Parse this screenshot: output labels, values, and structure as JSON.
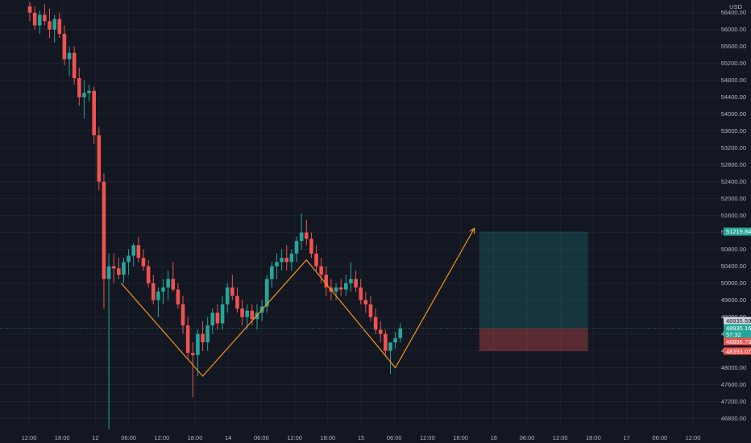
{
  "chart_data": {
    "type": "candlestick",
    "currency": "USD",
    "ylim": [
      46600,
      56700
    ],
    "yticks": [
      46800,
      47200,
      47600,
      48000,
      48400,
      48800,
      49200,
      49600,
      50000,
      50400,
      50800,
      51200,
      51600,
      52000,
      52400,
      52800,
      53200,
      53600,
      54000,
      54400,
      54800,
      55200,
      55600,
      56000,
      56400
    ],
    "xticks": [
      "12:00",
      "18:00",
      "12",
      "06:00",
      "12:00",
      "18:00",
      "14",
      "06:00",
      "12:00",
      "18:00",
      "15",
      "06:00",
      "12:00",
      "18:00",
      "16",
      "06:00",
      "12:00",
      "18:00",
      "17",
      "06:00",
      "12:00"
    ],
    "colors": {
      "up": "#26a69a",
      "down": "#ef5350",
      "pattern": "#f7931a",
      "background": "#131722",
      "grid": "#1e222d",
      "axis_text": "#b2b5be",
      "target_zone": "#26a69a",
      "stop_zone": "#ef5350"
    },
    "candles": [
      {
        "o": 56550,
        "h": 56650,
        "l": 56200,
        "c": 56400
      },
      {
        "o": 56400,
        "h": 56550,
        "l": 56000,
        "c": 56100
      },
      {
        "o": 56100,
        "h": 56450,
        "l": 55900,
        "c": 56350
      },
      {
        "o": 56350,
        "h": 56600,
        "l": 56100,
        "c": 56200
      },
      {
        "o": 56200,
        "h": 56500,
        "l": 55800,
        "c": 56000
      },
      {
        "o": 56000,
        "h": 56350,
        "l": 55700,
        "c": 56250
      },
      {
        "o": 56250,
        "h": 56400,
        "l": 55800,
        "c": 55900
      },
      {
        "o": 55900,
        "h": 56100,
        "l": 55150,
        "c": 55300
      },
      {
        "o": 55300,
        "h": 55600,
        "l": 54900,
        "c": 55450
      },
      {
        "o": 55450,
        "h": 55600,
        "l": 54700,
        "c": 54850
      },
      {
        "o": 54850,
        "h": 55100,
        "l": 54200,
        "c": 54400
      },
      {
        "o": 54400,
        "h": 54800,
        "l": 53900,
        "c": 54500
      },
      {
        "o": 54500,
        "h": 54700,
        "l": 54300,
        "c": 54550
      },
      {
        "o": 54550,
        "h": 54650,
        "l": 53300,
        "c": 53500
      },
      {
        "o": 53500,
        "h": 53700,
        "l": 52200,
        "c": 52400
      },
      {
        "o": 52400,
        "h": 52600,
        "l": 49400,
        "c": 50100
      },
      {
        "o": 50100,
        "h": 50700,
        "l": 46550,
        "c": 50400
      },
      {
        "o": 50400,
        "h": 50700,
        "l": 50000,
        "c": 50350
      },
      {
        "o": 50350,
        "h": 50600,
        "l": 50100,
        "c": 50200
      },
      {
        "o": 50200,
        "h": 50600,
        "l": 50000,
        "c": 50500
      },
      {
        "o": 50500,
        "h": 50800,
        "l": 50200,
        "c": 50650
      },
      {
        "o": 50650,
        "h": 50950,
        "l": 50400,
        "c": 50900
      },
      {
        "o": 50900,
        "h": 51100,
        "l": 50500,
        "c": 50600
      },
      {
        "o": 50600,
        "h": 50800,
        "l": 50300,
        "c": 50400
      },
      {
        "o": 50400,
        "h": 50550,
        "l": 49900,
        "c": 50000
      },
      {
        "o": 50000,
        "h": 50200,
        "l": 49500,
        "c": 49600
      },
      {
        "o": 49600,
        "h": 49900,
        "l": 49200,
        "c": 49800
      },
      {
        "o": 49800,
        "h": 50100,
        "l": 49500,
        "c": 49900
      },
      {
        "o": 49900,
        "h": 50300,
        "l": 49600,
        "c": 50100
      },
      {
        "o": 50100,
        "h": 50500,
        "l": 49800,
        "c": 49850
      },
      {
        "o": 49850,
        "h": 50000,
        "l": 49400,
        "c": 49500
      },
      {
        "o": 49500,
        "h": 49700,
        "l": 48800,
        "c": 49000
      },
      {
        "o": 49000,
        "h": 49200,
        "l": 48200,
        "c": 48350
      },
      {
        "o": 48350,
        "h": 48600,
        "l": 47300,
        "c": 48300
      },
      {
        "o": 48300,
        "h": 48900,
        "l": 47800,
        "c": 48800
      },
      {
        "o": 48800,
        "h": 49100,
        "l": 48400,
        "c": 48600
      },
      {
        "o": 48600,
        "h": 49200,
        "l": 48400,
        "c": 49000
      },
      {
        "o": 49000,
        "h": 49400,
        "l": 48800,
        "c": 49300
      },
      {
        "o": 49300,
        "h": 49500,
        "l": 48900,
        "c": 49050
      },
      {
        "o": 49050,
        "h": 49700,
        "l": 48900,
        "c": 49500
      },
      {
        "o": 49500,
        "h": 50000,
        "l": 49300,
        "c": 49900
      },
      {
        "o": 49900,
        "h": 50200,
        "l": 49600,
        "c": 49700
      },
      {
        "o": 49700,
        "h": 49900,
        "l": 49300,
        "c": 49400
      },
      {
        "o": 49400,
        "h": 49600,
        "l": 49000,
        "c": 49200
      },
      {
        "o": 49200,
        "h": 49500,
        "l": 48900,
        "c": 49350
      },
      {
        "o": 49350,
        "h": 49500,
        "l": 49000,
        "c": 49150
      },
      {
        "o": 49150,
        "h": 49500,
        "l": 48900,
        "c": 49300
      },
      {
        "o": 49300,
        "h": 49600,
        "l": 49100,
        "c": 49450
      },
      {
        "o": 49450,
        "h": 50200,
        "l": 49300,
        "c": 50100
      },
      {
        "o": 50100,
        "h": 50500,
        "l": 49900,
        "c": 50400
      },
      {
        "o": 50400,
        "h": 50700,
        "l": 50100,
        "c": 50500
      },
      {
        "o": 50500,
        "h": 50800,
        "l": 50300,
        "c": 50600
      },
      {
        "o": 50600,
        "h": 50900,
        "l": 50300,
        "c": 50500
      },
      {
        "o": 50500,
        "h": 50800,
        "l": 50300,
        "c": 50700
      },
      {
        "o": 50700,
        "h": 51100,
        "l": 50500,
        "c": 51000
      },
      {
        "o": 51000,
        "h": 51650,
        "l": 50800,
        "c": 51200
      },
      {
        "o": 51200,
        "h": 51500,
        "l": 50900,
        "c": 51050
      },
      {
        "o": 51050,
        "h": 51200,
        "l": 50600,
        "c": 50700
      },
      {
        "o": 50700,
        "h": 50900,
        "l": 50300,
        "c": 50400
      },
      {
        "o": 50400,
        "h": 50600,
        "l": 50000,
        "c": 50200
      },
      {
        "o": 50200,
        "h": 50400,
        "l": 49700,
        "c": 49900
      },
      {
        "o": 49900,
        "h": 50100,
        "l": 49600,
        "c": 49800
      },
      {
        "o": 49800,
        "h": 50000,
        "l": 49600,
        "c": 49900
      },
      {
        "o": 49900,
        "h": 50100,
        "l": 49700,
        "c": 49850
      },
      {
        "o": 49850,
        "h": 50200,
        "l": 49700,
        "c": 50000
      },
      {
        "o": 50000,
        "h": 50500,
        "l": 49800,
        "c": 50100
      },
      {
        "o": 50100,
        "h": 50300,
        "l": 49800,
        "c": 49900
      },
      {
        "o": 49900,
        "h": 50100,
        "l": 49500,
        "c": 49600
      },
      {
        "o": 49600,
        "h": 49800,
        "l": 49300,
        "c": 49500
      },
      {
        "o": 49500,
        "h": 49700,
        "l": 49100,
        "c": 49200
      },
      {
        "o": 49200,
        "h": 49400,
        "l": 48800,
        "c": 48900
      },
      {
        "o": 48900,
        "h": 49100,
        "l": 48600,
        "c": 48800
      },
      {
        "o": 48800,
        "h": 48900,
        "l": 48300,
        "c": 48400
      },
      {
        "o": 48400,
        "h": 48600,
        "l": 47850,
        "c": 48600
      },
      {
        "o": 48600,
        "h": 48850,
        "l": 48450,
        "c": 48700
      },
      {
        "o": 48700,
        "h": 49050,
        "l": 48600,
        "c": 48930
      }
    ],
    "pattern_line": [
      {
        "i": 18.5,
        "p": 50000
      },
      {
        "i": 35,
        "p": 47800
      },
      {
        "i": 56,
        "p": 50550
      },
      {
        "i": 74,
        "p": 48000
      },
      {
        "i": 90,
        "p": 51300
      }
    ],
    "position": {
      "entry": 48935.16,
      "target": 51219.84,
      "stop": 48393.07,
      "from_i": 91,
      "to_i": 113
    },
    "labels": {
      "target": "51219.84",
      "price_a": "48935.59",
      "price_b": "48935.16",
      "countdown": "57:32",
      "price_c": "48896.73",
      "stop": "48393.07",
      "currency": "USD"
    }
  }
}
